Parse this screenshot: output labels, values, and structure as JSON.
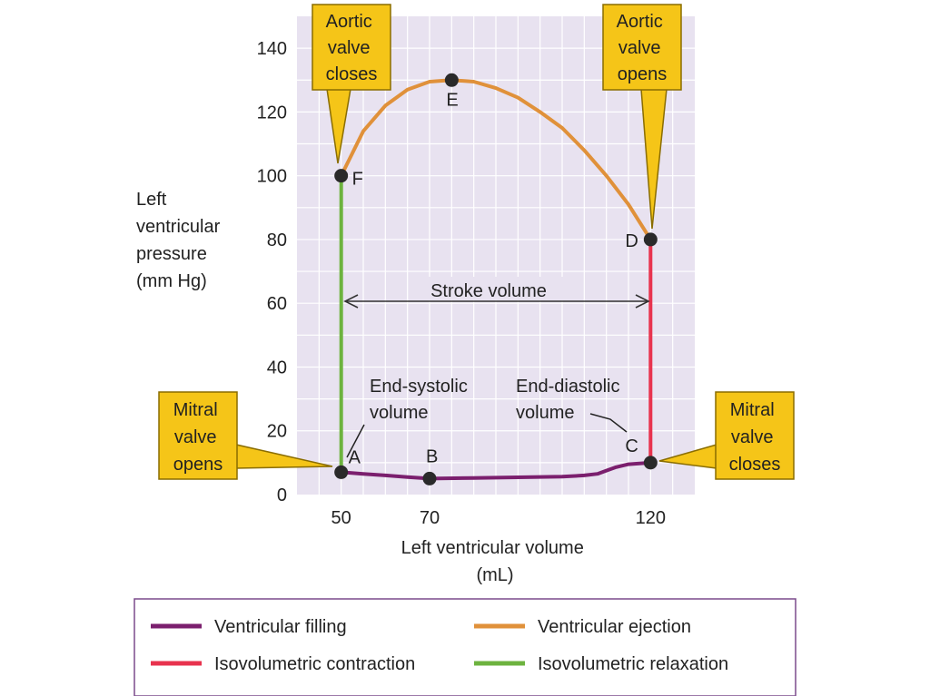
{
  "chart_data": {
    "type": "line",
    "xlabel": [
      "Left ventricular volume",
      "(mL)"
    ],
    "ylabel": [
      "Left",
      "ventricular",
      "pressure",
      "(mm Hg)"
    ],
    "xlim": [
      40,
      130
    ],
    "ylim": [
      0,
      150
    ],
    "x_ticks": [
      50,
      70,
      120
    ],
    "y_ticks": [
      0,
      20,
      40,
      60,
      80,
      100,
      120,
      140
    ],
    "grid": true,
    "points": [
      {
        "label": "A",
        "x": 50,
        "y": 7
      },
      {
        "label": "B",
        "x": 70,
        "y": 5
      },
      {
        "label": "C",
        "x": 120,
        "y": 10
      },
      {
        "label": "D",
        "x": 120,
        "y": 80
      },
      {
        "label": "E",
        "x": 75,
        "y": 130
      },
      {
        "label": "F",
        "x": 50,
        "y": 100
      }
    ],
    "series": [
      {
        "name": "Ventricular filling",
        "color": "#7B1F6E",
        "x": [
          50,
          55,
          60,
          65,
          70,
          80,
          90,
          100,
          105,
          108,
          110,
          112,
          115,
          120
        ],
        "y": [
          7,
          6.5,
          6,
          5.5,
          5,
          5.2,
          5.4,
          5.6,
          6,
          6.5,
          7.5,
          8.5,
          9.5,
          10
        ]
      },
      {
        "name": "Isovolumetric contraction",
        "color": "#E8334E",
        "x": [
          120,
          120
        ],
        "y": [
          10,
          80
        ]
      },
      {
        "name": "Ventricular ejection",
        "color": "#E0913A",
        "x": [
          120,
          115,
          110,
          105,
          100,
          95,
          90,
          85,
          80,
          75,
          70,
          65,
          60,
          55,
          50
        ],
        "y": [
          80,
          91,
          100,
          108,
          115,
          120,
          124.5,
          127.5,
          129.5,
          130,
          129.5,
          127,
          122,
          114,
          100
        ]
      },
      {
        "name": "Isovolumetric relaxation",
        "color": "#6DB33F",
        "x": [
          50,
          50
        ],
        "y": [
          100,
          7
        ]
      }
    ],
    "stroke_volume_label": "Stroke volume",
    "annotations": {
      "end_systolic": [
        "End-systolic",
        "volume"
      ],
      "end_diastolic": [
        "End-diastolic",
        "volume"
      ]
    },
    "callouts": {
      "aortic_closes": [
        "Aortic",
        "valve",
        "closes"
      ],
      "aortic_opens": [
        "Aortic",
        "valve",
        "opens"
      ],
      "mitral_opens": [
        "Mitral",
        "valve",
        "opens"
      ],
      "mitral_closes": [
        "Mitral",
        "valve",
        "closes"
      ]
    },
    "legend_position": "bottom"
  },
  "colors": {
    "plot_bg": "#E8E2F0",
    "grid": "#FFFFFF",
    "callout_fill": "#F5C518",
    "callout_stroke": "#8A6D00",
    "legend_border": "#7B4A8C"
  }
}
